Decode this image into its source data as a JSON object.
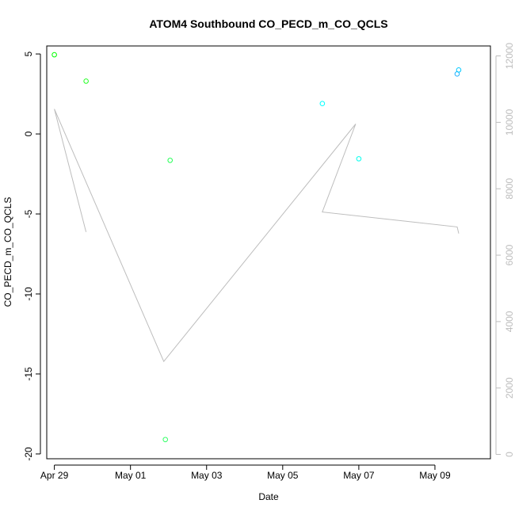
{
  "chart_data": {
    "type": "scatter",
    "title": "ATOM4 Southbound CO_PECD_m_CO_QCLS",
    "xlabel": "Date",
    "ylabel": "CO_PECD_m_CO_QCLS",
    "x_axis": {
      "type": "date",
      "range": [
        "2016-04-28T19:12",
        "2016-05-10T11:00"
      ],
      "ticks": [
        {
          "value": "2016-04-29",
          "label": "Apr 29"
        },
        {
          "value": "2016-05-01",
          "label": "May 01"
        },
        {
          "value": "2016-05-03",
          "label": "May 03"
        },
        {
          "value": "2016-05-05",
          "label": "May 05"
        },
        {
          "value": "2016-05-07",
          "label": "May 07"
        },
        {
          "value": "2016-05-09",
          "label": "May 09"
        }
      ]
    },
    "y_axis": {
      "range": [
        -20.3,
        5.5
      ],
      "ticks": [
        5,
        0,
        -5,
        -10,
        -15,
        -20
      ]
    },
    "y2_axis": {
      "range": [
        -130,
        12300
      ],
      "ticks": [
        0,
        2000,
        4000,
        6000,
        8000,
        10000,
        12000
      ],
      "color": "#bdbdbd"
    },
    "grid": false,
    "series": [
      {
        "kind": "points",
        "points": [
          {
            "x": "2016-04-29T00:00",
            "y": 4.95,
            "color": "#00ff00"
          },
          {
            "x": "2016-04-29T20:00",
            "y": 3.3,
            "color": "#22ff22"
          },
          {
            "x": "2016-05-02T01:00",
            "y": -1.65,
            "color": "#22ff55"
          },
          {
            "x": "2016-05-01T22:00",
            "y": -19.1,
            "color": "#33ff66"
          },
          {
            "x": "2016-05-06T01:00",
            "y": 1.9,
            "color": "#00ffff"
          },
          {
            "x": "2016-05-07T00:00",
            "y": -1.55,
            "color": "#00ffee"
          },
          {
            "x": "2016-05-09T14:00",
            "y": 3.75,
            "color": "#1ab0ff"
          },
          {
            "x": "2016-05-09T15:00",
            "y": 4.0,
            "color": "#00c8ff"
          }
        ]
      },
      {
        "kind": "line",
        "axis": "y2",
        "color": "#bdbdbd",
        "points": [
          {
            "x": "2016-04-29T20:00",
            "y": 6700
          },
          {
            "x": "2016-04-29T00:00",
            "y": 10400
          },
          {
            "x": "2016-05-01T21:00",
            "y": 2800
          },
          {
            "x": "2016-05-06T22:00",
            "y": 9950
          },
          {
            "x": "2016-05-06T01:00",
            "y": 7300
          },
          {
            "x": "2016-05-09T14:00",
            "y": 6850
          },
          {
            "x": "2016-05-09T15:00",
            "y": 6650
          }
        ]
      }
    ]
  }
}
